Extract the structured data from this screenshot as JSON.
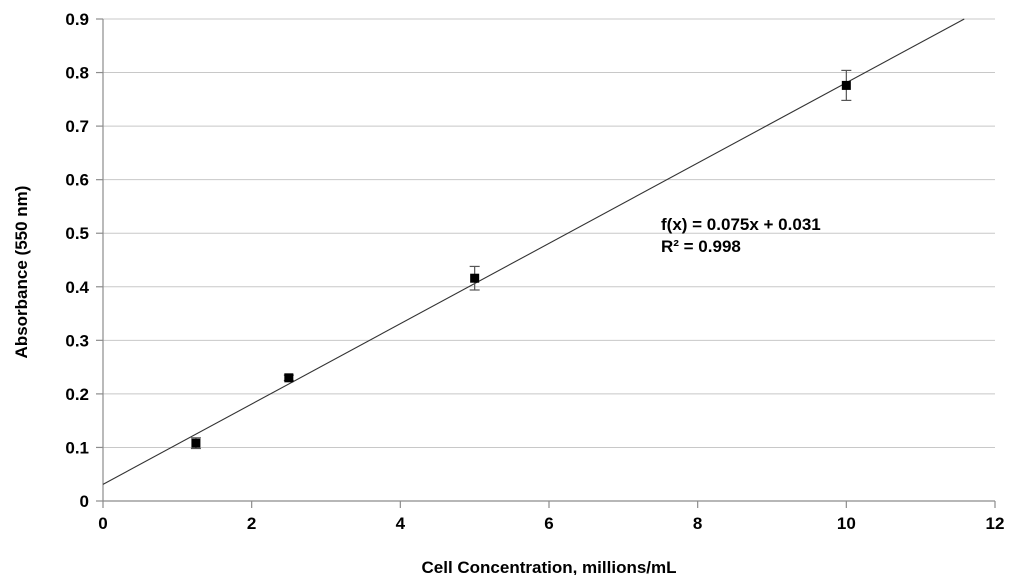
{
  "chart_data": {
    "type": "scatter",
    "title": "",
    "xlabel": "Cell Concentration, millions/mL",
    "ylabel": "Absorbance (550 nm)",
    "xlim": [
      0,
      12
    ],
    "ylim": [
      0,
      0.9
    ],
    "x_ticks": [
      0,
      2,
      4,
      6,
      8,
      10,
      12
    ],
    "y_ticks": [
      0,
      0.1,
      0.2,
      0.3,
      0.4,
      0.5,
      0.6,
      0.7,
      0.8,
      0.9
    ],
    "x_tick_labels": [
      "0",
      "2",
      "4",
      "6",
      "8",
      "10",
      "12"
    ],
    "y_tick_labels": [
      "0",
      "0.1",
      "0.2",
      "0.3",
      "0.4",
      "0.5",
      "0.6",
      "0.7",
      "0.8",
      "0.9"
    ],
    "grid": "horizontal",
    "legend": "none",
    "marker_color": "#000000",
    "series": [
      {
        "x": [
          1.25,
          2.5,
          5,
          10
        ],
        "y": [
          0.108,
          0.23,
          0.416,
          0.776
        ],
        "error": [
          0.01,
          0.005,
          0.022,
          0.028
        ]
      }
    ],
    "trendline": {
      "slope": 0.075,
      "intercept": 0.031
    },
    "annotation": {
      "equation": "f(x) = 0.075x + 0.031",
      "r_squared": "R² = 0.998"
    }
  }
}
